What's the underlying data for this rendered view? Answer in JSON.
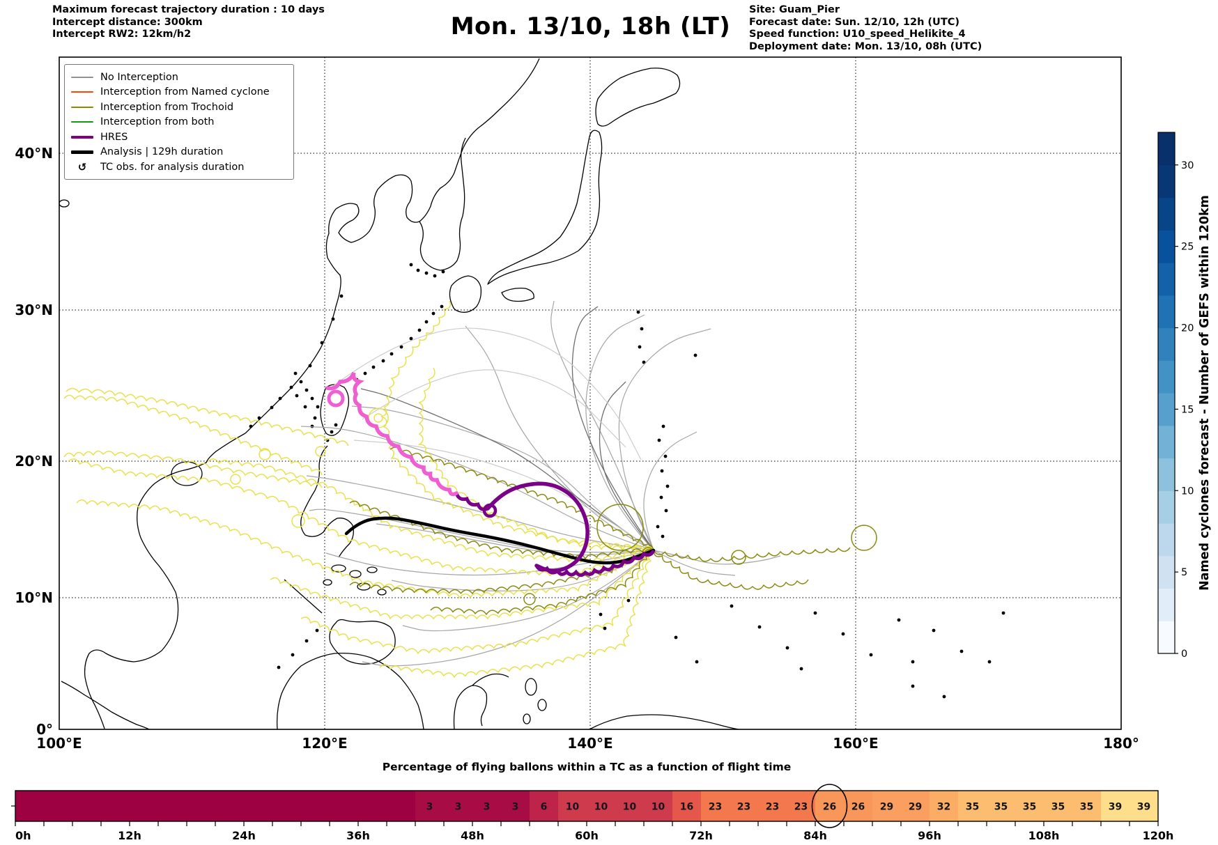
{
  "header": {
    "left_lines": [
      "Maximum forecast trajectory duration : 10 days",
      "Intercept distance: 300km",
      "Intercept RW2: 12km/h2"
    ],
    "title": "Mon. 13/10, 18h (LT)",
    "right_lines": [
      "Site: Guam_Pier",
      "Forecast date: Sun. 12/10, 12h (UTC)",
      "Speed function: U10_speed_Helikite_4",
      "Deployment date: Mon. 13/10, 08h (UTC)"
    ]
  },
  "legend": {
    "items": [
      {
        "label": "No Interception",
        "color": "#909090",
        "thick": false
      },
      {
        "label": "Interception from Named cyclone",
        "color": "#FF4500",
        "thick": false
      },
      {
        "label": "Interception from Trochoid",
        "color": "#8A8A00",
        "thick": false
      },
      {
        "label": "Interception from both",
        "color": "#119911",
        "thick": false
      },
      {
        "label": "HRES",
        "color": "#800080",
        "thick": true
      },
      {
        "label": "Analysis | 129h duration",
        "color": "#000000",
        "thick": true
      },
      {
        "label": "TC obs. for analysis duration",
        "glyph": "↺"
      }
    ]
  },
  "map": {
    "x_ticks": [
      {
        "label": "100°E"
      },
      {
        "label": "120°E"
      },
      {
        "label": "140°E"
      },
      {
        "label": "160°E"
      },
      {
        "label": "180°"
      }
    ],
    "y_ticks": [
      {
        "label": "40°N"
      },
      {
        "label": "30°N"
      },
      {
        "label": "20°N"
      },
      {
        "label": "10°N"
      },
      {
        "label": "0°"
      }
    ]
  },
  "chart_data": [
    {
      "type": "map",
      "title": "Mon. 13/10, 18h (LT)",
      "x_axis": {
        "ticks": [
          "100°E",
          "120°E",
          "140°E",
          "160°E",
          "180°"
        ],
        "range_deg": [
          100,
          180
        ]
      },
      "y_axis": {
        "ticks": [
          "0°",
          "10°N",
          "20°N",
          "30°N",
          "40°N"
        ],
        "range_deg": [
          0,
          45
        ]
      },
      "origin": {
        "site": "Guam_Pier",
        "lon_deg": 144.8,
        "lat_deg": 13.4
      },
      "series": [
        {
          "name": "No Interception",
          "color": "#A6A6A6",
          "description": "grey ensemble balloon trajectories fanning west and recurving north from Guam"
        },
        {
          "name": "Interception from Trochoid",
          "color": "#8A8A10",
          "description": "olive and yellow trochoidal looping trajectories crossing the Philippine Sea toward the South China Sea"
        },
        {
          "name": "HRES",
          "color": "#7A0087",
          "description": "thick purple track west from Guam with a large loop near 137E 16N, continuing as a magenta segment northwest to Taiwan"
        },
        {
          "name": "Analysis | 129h duration",
          "color": "#000000",
          "description": "thick black track from Guam west to eastern Luzon"
        }
      ],
      "grid": "dotted at 120E/140E/160E and 10N/20N/30N/40N"
    },
    {
      "type": "heatmap",
      "title": "Percentage of flying ballons within a TC as a function of flight time",
      "x_axis_labels": [
        "0h",
        "12h",
        "24h",
        "36h",
        "48h",
        "60h",
        "72h",
        "84h",
        "96h",
        "108h",
        "120h"
      ],
      "x_range_hours": [
        0,
        120
      ],
      "cell_width_hours": 3,
      "tick_step_hours": 3,
      "circled_cell_index": 28,
      "cells": [
        {
          "v": null,
          "c": "#9E0142"
        },
        {
          "v": null,
          "c": "#9E0142"
        },
        {
          "v": null,
          "c": "#9E0142"
        },
        {
          "v": null,
          "c": "#9E0142"
        },
        {
          "v": null,
          "c": "#9E0142"
        },
        {
          "v": null,
          "c": "#9E0142"
        },
        {
          "v": null,
          "c": "#9E0142"
        },
        {
          "v": null,
          "c": "#9E0142"
        },
        {
          "v": null,
          "c": "#9E0142"
        },
        {
          "v": null,
          "c": "#9E0142"
        },
        {
          "v": null,
          "c": "#9E0142"
        },
        {
          "v": null,
          "c": "#9E0142"
        },
        {
          "v": null,
          "c": "#9E0142"
        },
        {
          "v": null,
          "c": "#9E0142"
        },
        {
          "v": 3,
          "c": "#A80C45"
        },
        {
          "v": 3,
          "c": "#A80C45"
        },
        {
          "v": 3,
          "c": "#A80C45"
        },
        {
          "v": 3,
          "c": "#A80C45"
        },
        {
          "v": 6,
          "c": "#BE234A"
        },
        {
          "v": 10,
          "c": "#CE3B4D"
        },
        {
          "v": 10,
          "c": "#CE3B4D"
        },
        {
          "v": 10,
          "c": "#CE3B4D"
        },
        {
          "v": 10,
          "c": "#CE3B4D"
        },
        {
          "v": 16,
          "c": "#E5574A"
        },
        {
          "v": 23,
          "c": "#F4784E"
        },
        {
          "v": 23,
          "c": "#F4784E"
        },
        {
          "v": 23,
          "c": "#F4784E"
        },
        {
          "v": 23,
          "c": "#F4784E"
        },
        {
          "v": 26,
          "c": "#F9975B",
          "circled": true
        },
        {
          "v": 26,
          "c": "#F9975B"
        },
        {
          "v": 29,
          "c": "#FA9F5F"
        },
        {
          "v": 29,
          "c": "#FA9F5F"
        },
        {
          "v": 32,
          "c": "#FBAD66"
        },
        {
          "v": 35,
          "c": "#FDBD70"
        },
        {
          "v": 35,
          "c": "#FDBD70"
        },
        {
          "v": 35,
          "c": "#FDBD70"
        },
        {
          "v": 35,
          "c": "#FDBD70"
        },
        {
          "v": 35,
          "c": "#FDBD70"
        },
        {
          "v": 39,
          "c": "#FEDD8B"
        },
        {
          "v": 39,
          "c": "#FEDD8B"
        }
      ]
    },
    {
      "type": "colorbar",
      "label": "Named cyclones forecast - Number of GEFS within 120km",
      "ticks": [
        0,
        5,
        10,
        15,
        20,
        25,
        30
      ],
      "range": [
        0,
        32
      ],
      "colormap": "Blues",
      "colors_bottom_to_top": [
        "#f7fbff",
        "#e1edf8",
        "#d0e1f2",
        "#bdd7ec",
        "#a6cee4",
        "#8dc1dd",
        "#72b2d7",
        "#57a0ce",
        "#4292c6",
        "#3181bd",
        "#2171b5",
        "#1361a9",
        "#08519c",
        "#084488",
        "#083776",
        "#08306b"
      ]
    }
  ]
}
